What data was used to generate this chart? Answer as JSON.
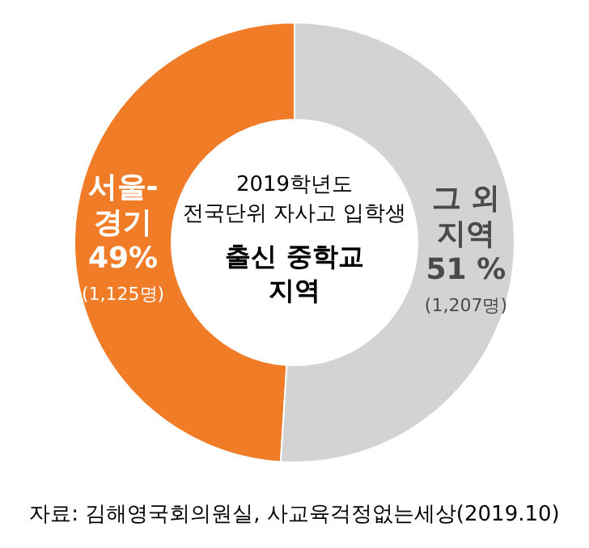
{
  "chart_data": {
    "type": "donut",
    "title": "2019학년도\n전국단위 자사고 입학생",
    "subtitle": "출신 중학교\n지역",
    "categories": [
      "서울-\n경기",
      "그 외\n지역"
    ],
    "values": [
      49,
      51
    ],
    "colors": [
      "#f07c28",
      "#d3d3d3"
    ],
    "value_labels": [
      "49%\n(1,125명)",
      "51 %\n(1,207명)"
    ],
    "annotations": [
      "자료: 김해영국회의원실, 사교육걱정없는세상(2019.10)"
    ]
  }
}
